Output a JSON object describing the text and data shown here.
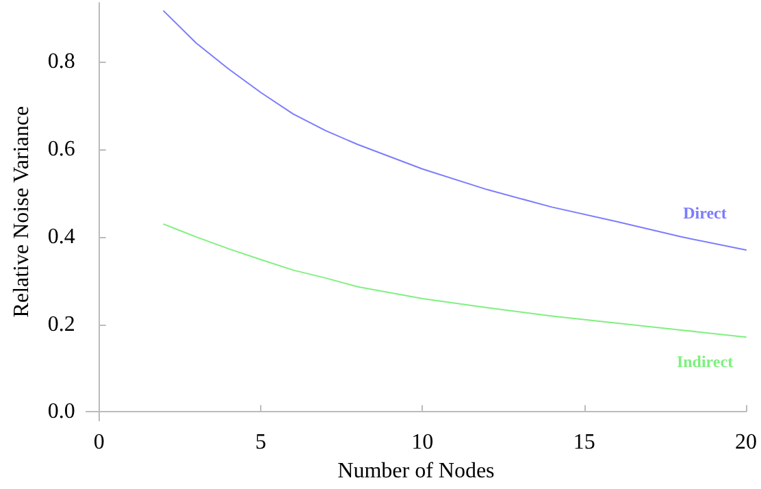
{
  "chart_data": {
    "type": "line",
    "xlabel": "Number of Nodes",
    "ylabel": "Relative Noise Variance",
    "xlim": [
      -0.4,
      20
    ],
    "xticks": [
      0,
      5,
      10,
      15,
      20
    ],
    "ylim": [
      -0.02,
      0.935
    ],
    "yticks": [
      {
        "value": 0,
        "label": "0.0"
      },
      {
        "value": 0.2,
        "label": "0.2"
      },
      {
        "value": 0.4,
        "label": "0.4"
      },
      {
        "value": 0.6,
        "label": "0.6"
      },
      {
        "value": 0.8,
        "label": "0.8"
      }
    ],
    "grid": false,
    "marker": "none",
    "line_style": "solid",
    "series": [
      {
        "name": "Direct",
        "color": "#7b7bff",
        "x": [
          2,
          3,
          4,
          5,
          6,
          7,
          8,
          10,
          12,
          14,
          16,
          18,
          20
        ],
        "values": [
          0.916,
          0.843,
          0.784,
          0.73,
          0.681,
          0.643,
          0.611,
          0.555,
          0.508,
          0.468,
          0.435,
          0.4,
          0.37
        ]
      },
      {
        "name": "Indirect",
        "color": "#7ff07f",
        "x": [
          2,
          3,
          4,
          5,
          6,
          7,
          8,
          10,
          12,
          14,
          16,
          18,
          20
        ],
        "values": [
          0.429,
          0.4,
          0.373,
          0.348,
          0.324,
          0.306,
          0.286,
          0.259,
          0.238,
          0.219,
          0.203,
          0.187,
          0.171
        ]
      }
    ]
  }
}
